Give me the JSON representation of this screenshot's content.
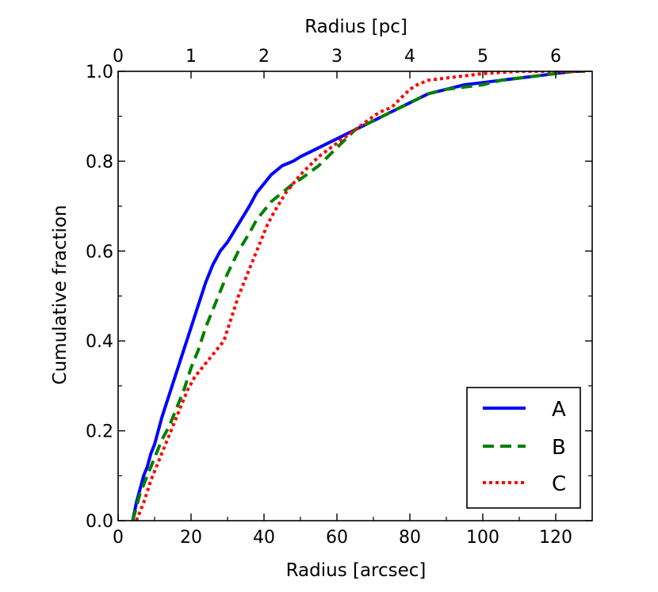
{
  "chart_data": {
    "type": "line",
    "title": "",
    "xlabel": "Radius [arcsec]",
    "x2label": "Radius [pc]",
    "ylabel": "Cumulative fraction",
    "xlim": [
      0,
      130
    ],
    "ylim": [
      0.0,
      1.0
    ],
    "x2lim": [
      0,
      6.5
    ],
    "xticks": [
      0,
      20,
      40,
      60,
      80,
      100,
      120
    ],
    "xtick_labels": [
      "0",
      "20",
      "40",
      "60",
      "80",
      "100",
      "120"
    ],
    "x2ticks": [
      0,
      1,
      2,
      3,
      4,
      5,
      6
    ],
    "x2tick_labels": [
      "0",
      "1",
      "2",
      "3",
      "4",
      "5",
      "6"
    ],
    "yticks": [
      0.0,
      0.2,
      0.4,
      0.6,
      0.8,
      1.0
    ],
    "ytick_labels": [
      "0.0",
      "0.2",
      "0.4",
      "0.6",
      "0.8",
      "1.0"
    ],
    "grid": false,
    "legend_position": "bottom-right",
    "series": [
      {
        "name": "A",
        "color": "#0000ff",
        "style": "solid",
        "x": [
          4,
          5,
          6,
          7,
          8,
          9,
          10,
          12,
          14,
          16,
          18,
          20,
          22,
          24,
          26,
          28,
          30,
          33,
          36,
          38,
          40,
          42,
          45,
          48,
          50,
          55,
          60,
          65,
          70,
          75,
          80,
          85,
          90,
          95,
          100,
          105,
          110,
          115,
          120,
          125,
          128
        ],
        "y": [
          0.0,
          0.04,
          0.07,
          0.1,
          0.12,
          0.15,
          0.17,
          0.23,
          0.28,
          0.33,
          0.38,
          0.43,
          0.48,
          0.53,
          0.57,
          0.6,
          0.62,
          0.66,
          0.7,
          0.73,
          0.75,
          0.77,
          0.79,
          0.8,
          0.81,
          0.83,
          0.85,
          0.87,
          0.89,
          0.91,
          0.93,
          0.95,
          0.96,
          0.97,
          0.975,
          0.98,
          0.985,
          0.99,
          0.995,
          1.0,
          1.0
        ]
      },
      {
        "name": "B",
        "color": "#008000",
        "style": "dashed",
        "x": [
          4,
          6,
          8,
          10,
          12,
          14,
          16,
          18,
          20,
          22,
          24,
          26,
          28,
          30,
          33,
          36,
          38,
          40,
          42,
          45,
          48,
          50,
          55,
          60,
          65,
          70,
          75,
          80,
          85,
          90,
          95,
          100,
          105,
          110,
          115,
          120,
          125,
          128
        ],
        "y": [
          0.0,
          0.06,
          0.1,
          0.14,
          0.18,
          0.21,
          0.25,
          0.29,
          0.34,
          0.38,
          0.43,
          0.47,
          0.51,
          0.55,
          0.6,
          0.64,
          0.67,
          0.69,
          0.71,
          0.73,
          0.75,
          0.76,
          0.79,
          0.83,
          0.87,
          0.89,
          0.91,
          0.93,
          0.95,
          0.96,
          0.965,
          0.97,
          0.98,
          0.985,
          0.99,
          0.995,
          1.0,
          1.0
        ]
      },
      {
        "name": "C",
        "color": "#ff0000",
        "style": "dotted",
        "x": [
          5,
          7,
          9,
          11,
          13,
          15,
          17,
          19,
          21,
          23,
          25,
          27,
          29,
          31,
          33,
          35,
          37,
          39,
          41,
          43,
          46,
          50,
          55,
          60,
          65,
          70,
          72,
          75,
          80,
          82,
          85,
          90,
          95,
          100,
          110,
          120,
          125,
          128
        ],
        "y": [
          0.0,
          0.04,
          0.09,
          0.13,
          0.17,
          0.21,
          0.25,
          0.29,
          0.32,
          0.34,
          0.36,
          0.38,
          0.4,
          0.45,
          0.5,
          0.54,
          0.58,
          0.62,
          0.66,
          0.69,
          0.73,
          0.77,
          0.81,
          0.84,
          0.87,
          0.9,
          0.91,
          0.92,
          0.96,
          0.97,
          0.98,
          0.985,
          0.99,
          0.995,
          1.0,
          1.0,
          1.0,
          1.0
        ]
      }
    ]
  }
}
